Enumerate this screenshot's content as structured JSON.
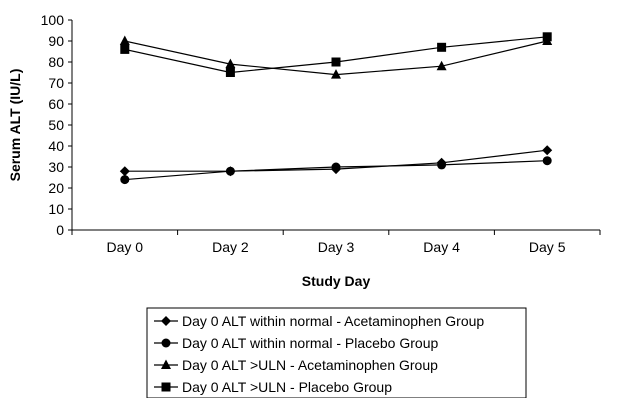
{
  "chart_data": {
    "type": "line",
    "title": "",
    "xlabel": "Study Day",
    "ylabel": "Serum ALT (IU/L)",
    "categories": [
      "Day 0",
      "Day 2",
      "Day 3",
      "Day 4",
      "Day 5"
    ],
    "ylim": [
      0,
      100
    ],
    "yticks": [
      0,
      10,
      20,
      30,
      40,
      50,
      60,
      70,
      80,
      90,
      100
    ],
    "grid": false,
    "legend_position": "bottom",
    "series": [
      {
        "name": "Day 0 ALT within normal - Acetaminophen Group",
        "marker": "diamond",
        "values": [
          28,
          28,
          29,
          32,
          38
        ]
      },
      {
        "name": "Day 0 ALT within normal - Placebo Group",
        "marker": "circle",
        "values": [
          24,
          28,
          30,
          31,
          33
        ]
      },
      {
        "name": "Day 0 ALT >ULN - Acetaminophen Group",
        "marker": "triangle",
        "values": [
          90,
          79,
          74,
          78,
          90
        ]
      },
      {
        "name": "Day 0 ALT >ULN - Placebo Group",
        "marker": "square",
        "values": [
          86,
          75,
          80,
          87,
          92
        ]
      }
    ],
    "line_color": "#000000"
  }
}
